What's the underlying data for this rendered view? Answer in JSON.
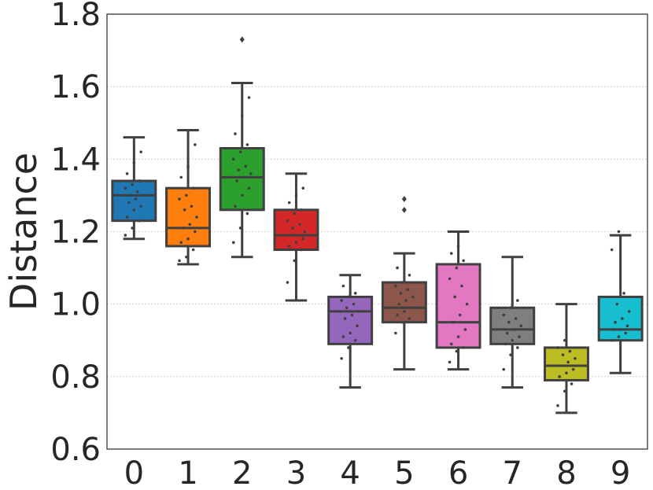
{
  "chart_data": {
    "type": "boxplot",
    "title": "",
    "xlabel": "",
    "ylabel": "Distance",
    "ylim": [
      0.6,
      1.8
    ],
    "yticks": [
      "0.6",
      "0.8",
      "1.0",
      "1.2",
      "1.4",
      "1.6",
      "1.8"
    ],
    "grid": "horizontal",
    "categories": [
      "0",
      "1",
      "2",
      "3",
      "4",
      "5",
      "6",
      "7",
      "8",
      "9"
    ],
    "colors": [
      "#1f77b4",
      "#ff7f0e",
      "#2ca02c",
      "#d62728",
      "#9467bd",
      "#8c564b",
      "#e377c2",
      "#7f7f7f",
      "#bcbd22",
      "#17becf"
    ],
    "boxes": [
      {
        "label": "0",
        "whisker_low": 1.18,
        "q1": 1.23,
        "median": 1.3,
        "q3": 1.34,
        "whisker_high": 1.46,
        "outliers": [],
        "points": [
          1.19,
          1.21,
          1.23,
          1.24,
          1.26,
          1.27,
          1.28,
          1.29,
          1.3,
          1.3,
          1.31,
          1.32,
          1.33,
          1.34,
          1.36,
          1.39,
          1.42
        ]
      },
      {
        "label": "1",
        "whisker_low": 1.11,
        "q1": 1.16,
        "median": 1.21,
        "q3": 1.32,
        "whisker_high": 1.48,
        "outliers": [],
        "points": [
          1.12,
          1.13,
          1.15,
          1.17,
          1.18,
          1.2,
          1.21,
          1.22,
          1.24,
          1.26,
          1.27,
          1.29,
          1.3,
          1.32,
          1.35,
          1.38,
          1.44
        ]
      },
      {
        "label": "2",
        "whisker_low": 1.13,
        "q1": 1.26,
        "median": 1.35,
        "q3": 1.43,
        "whisker_high": 1.61,
        "outliers": [
          1.73
        ],
        "points": [
          1.17,
          1.21,
          1.25,
          1.27,
          1.3,
          1.32,
          1.34,
          1.35,
          1.36,
          1.37,
          1.38,
          1.4,
          1.42,
          1.44,
          1.47,
          1.52,
          1.57
        ]
      },
      {
        "label": "3",
        "whisker_low": 1.01,
        "q1": 1.15,
        "median": 1.19,
        "q3": 1.26,
        "whisker_high": 1.36,
        "outliers": [],
        "points": [
          1.06,
          1.12,
          1.15,
          1.16,
          1.17,
          1.18,
          1.19,
          1.19,
          1.2,
          1.21,
          1.22,
          1.23,
          1.25,
          1.26,
          1.28,
          1.3,
          1.32
        ]
      },
      {
        "label": "4",
        "whisker_low": 0.77,
        "q1": 0.89,
        "median": 0.98,
        "q3": 1.02,
        "whisker_high": 1.08,
        "outliers": [],
        "points": [
          0.85,
          0.88,
          0.9,
          0.91,
          0.92,
          0.94,
          0.96,
          0.97,
          0.98,
          0.99,
          1.0,
          1.01,
          1.02,
          1.03,
          1.05
        ]
      },
      {
        "label": "5",
        "whisker_low": 0.82,
        "q1": 0.95,
        "median": 0.99,
        "q3": 1.06,
        "whisker_high": 1.14,
        "outliers": [
          1.26,
          1.29
        ],
        "points": [
          0.92,
          0.95,
          0.96,
          0.97,
          0.98,
          0.99,
          1.0,
          1.01,
          1.02,
          1.03,
          1.04,
          1.05,
          1.06,
          1.08,
          1.1
        ]
      },
      {
        "label": "6",
        "whisker_low": 0.82,
        "q1": 0.88,
        "median": 0.95,
        "q3": 1.11,
        "whisker_high": 1.2,
        "outliers": [],
        "points": [
          0.84,
          0.87,
          0.88,
          0.89,
          0.91,
          0.93,
          0.95,
          0.97,
          1.0,
          1.02,
          1.05,
          1.07,
          1.1,
          1.12,
          1.14,
          1.16
        ]
      },
      {
        "label": "7",
        "whisker_low": 0.77,
        "q1": 0.89,
        "median": 0.93,
        "q3": 0.99,
        "whisker_high": 1.13,
        "outliers": [],
        "points": [
          0.82,
          0.86,
          0.88,
          0.89,
          0.9,
          0.91,
          0.92,
          0.93,
          0.94,
          0.95,
          0.96,
          0.97,
          0.99,
          1.01
        ]
      },
      {
        "label": "8",
        "whisker_low": 0.7,
        "q1": 0.79,
        "median": 0.83,
        "q3": 0.88,
        "whisker_high": 1.0,
        "outliers": [],
        "points": [
          0.72,
          0.76,
          0.78,
          0.8,
          0.81,
          0.82,
          0.83,
          0.84,
          0.85,
          0.86,
          0.87,
          0.88,
          0.9
        ]
      },
      {
        "label": "9",
        "whisker_low": 0.81,
        "q1": 0.9,
        "median": 0.93,
        "q3": 1.02,
        "whisker_high": 1.19,
        "outliers": [],
        "points": [
          0.9,
          0.91,
          0.92,
          0.93,
          0.93,
          0.94,
          0.95,
          0.96,
          0.98,
          1.0,
          1.03,
          1.15,
          1.2
        ]
      }
    ],
    "box_edge_color": "#404040",
    "point_color": "#404040",
    "grid_color": "#cccccc"
  }
}
